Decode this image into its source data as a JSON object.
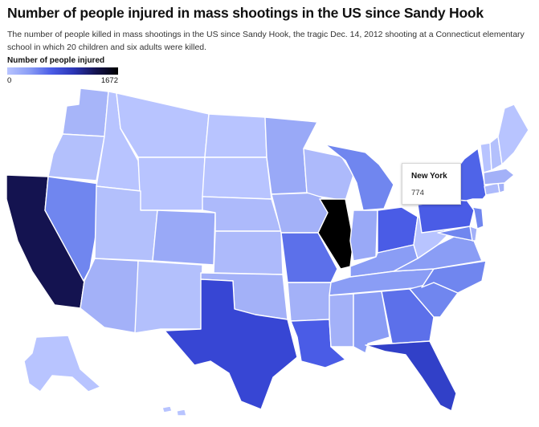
{
  "header": {
    "title": "Number of people injured in mass shootings in the US since Sandy Hook",
    "subtitle": "The number of people killed in mass shootings in the US since Sandy Hook, the tragic Dec. 14, 2012 shooting at a Connecticut elementary school in which 20 children and six adults were killed."
  },
  "legend": {
    "title": "Number of people injured",
    "min_label": "0",
    "max_label": "1672"
  },
  "tooltip": {
    "state": "New York",
    "value": "774"
  },
  "colors": {
    "scale": [
      "#b8c4ff",
      "#8a9df5",
      "#4a5ce6",
      "#2b35b5",
      "#141350",
      "#000000"
    ],
    "background": "#ffffff",
    "state_border": "#ffffff"
  },
  "map_data": {
    "type": "choropleth",
    "measure": "Number of people injured",
    "scale_min": 0,
    "scale_max": 1672,
    "highlighted_state": "New York",
    "highlighted_value": 774
  }
}
